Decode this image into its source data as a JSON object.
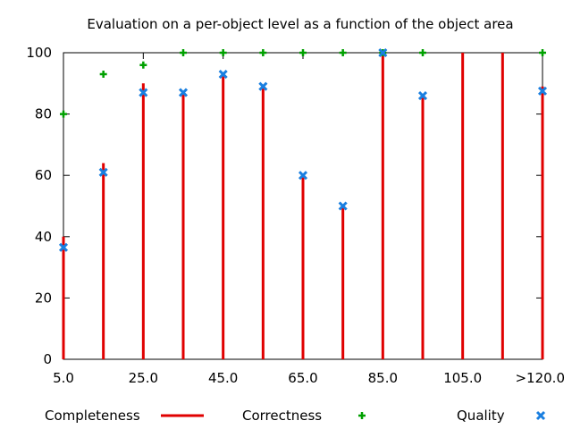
{
  "chart_data": {
    "type": "mixed",
    "title": "Evaluation on a per-object level as a function of the object area",
    "xlabel": "",
    "ylabel": "",
    "ylim": [
      0,
      100
    ],
    "y_ticks": [
      0,
      20,
      40,
      60,
      80,
      100
    ],
    "x_tick_labels": [
      "5.0",
      "25.0",
      "45.0",
      "65.0",
      "85.0",
      "105.0",
      ">120.0"
    ],
    "categories": [
      "5.0",
      "15.0",
      "25.0",
      "35.0",
      "45.0",
      "55.0",
      "65.0",
      "75.0",
      "85.0",
      "95.0",
      "105.0",
      "115.0",
      ">120.0"
    ],
    "grid": false,
    "legend_placement": "bottom",
    "series": [
      {
        "name": "Completeness",
        "style": "impulse",
        "color": "#e00000",
        "values": [
          40,
          64,
          90,
          87,
          93,
          89,
          60,
          50,
          100,
          86,
          100,
          100,
          89
        ]
      },
      {
        "name": "Correctness",
        "style": "plus",
        "color": "#00a000",
        "values": [
          80,
          93,
          96,
          100,
          100,
          100,
          100,
          100,
          100,
          100,
          null,
          null,
          100
        ]
      },
      {
        "name": "Quality",
        "style": "cross",
        "color": "#1a7fe0",
        "values": [
          36.5,
          61,
          87,
          87,
          93,
          89,
          60,
          50,
          100,
          86,
          null,
          null,
          87.5
        ]
      }
    ]
  }
}
